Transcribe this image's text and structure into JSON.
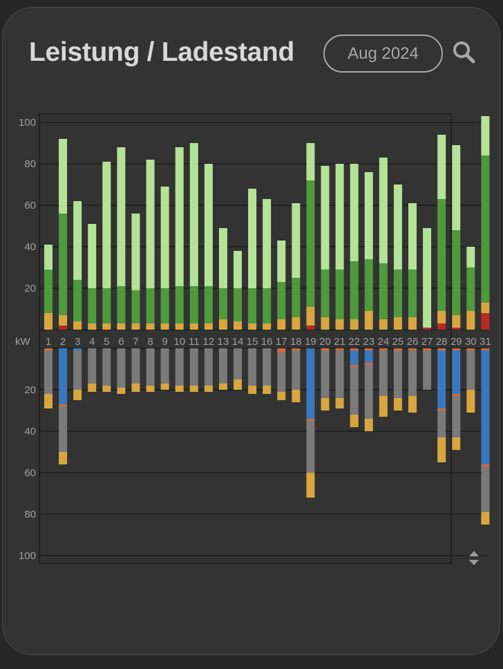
{
  "header": {
    "title": "Leistung / Ladestand",
    "period_label": "Aug 2024",
    "search_icon": "search-icon"
  },
  "chart_data": {
    "type": "bar",
    "unit_label": "kW",
    "categories": [
      "1",
      "2",
      "3",
      "4",
      "5",
      "6",
      "7",
      "8",
      "9",
      "10",
      "11",
      "12",
      "13",
      "14",
      "15",
      "16",
      "17",
      "18",
      "19",
      "20",
      "21",
      "22",
      "23",
      "24",
      "25",
      "26",
      "27",
      "28",
      "29",
      "30",
      "31"
    ],
    "upper": {
      "ylim": [
        0,
        103
      ],
      "ticks": [
        20,
        40,
        60,
        80,
        100
      ],
      "series": [
        {
          "key": "red",
          "color": "#b52a22",
          "values": [
            0,
            2,
            0,
            0,
            0,
            0,
            0,
            0,
            0,
            0,
            0,
            0,
            0,
            0,
            0,
            0,
            0,
            0,
            2,
            0,
            0,
            0,
            0,
            0,
            0,
            0,
            1,
            3,
            1,
            0,
            8
          ]
        },
        {
          "key": "yellow",
          "color": "#d8a640",
          "values": [
            8,
            5,
            4,
            3,
            3,
            3,
            3,
            3,
            3,
            3,
            3,
            3,
            5,
            4,
            3,
            3,
            5,
            6,
            9,
            6,
            5,
            5,
            9,
            5,
            6,
            6,
            0,
            6,
            6,
            9,
            5
          ]
        },
        {
          "key": "green",
          "color": "#4f9a3c",
          "values": [
            21,
            49,
            20,
            17,
            17,
            18,
            16,
            17,
            17,
            18,
            18,
            18,
            15,
            16,
            17,
            17,
            18,
            19,
            61,
            23,
            24,
            28,
            25,
            27,
            23,
            23,
            0,
            54,
            41,
            21,
            71
          ]
        },
        {
          "key": "lightgreen",
          "color": "#b4e296",
          "values": [
            12,
            36,
            38,
            31,
            61,
            67,
            37,
            62,
            49,
            67,
            69,
            59,
            29,
            18,
            48,
            43,
            20,
            36,
            18,
            50,
            51,
            47,
            42,
            51,
            41,
            32,
            48,
            31,
            41,
            10,
            19
          ]
        }
      ]
    },
    "lower": {
      "ylim": [
        0,
        103
      ],
      "ticks": [
        20,
        40,
        60,
        80,
        100
      ],
      "series": [
        {
          "key": "orange",
          "color": "#d2693a",
          "values": [
            1,
            0,
            0,
            0,
            0,
            0,
            0,
            0,
            0,
            0,
            0,
            0,
            0,
            0,
            0,
            0,
            2,
            1,
            0,
            1,
            1,
            1,
            1,
            1,
            1,
            1,
            1,
            1,
            1,
            1,
            1
          ]
        },
        {
          "key": "blue",
          "color": "#3a78bd",
          "values": [
            0,
            27,
            1,
            0,
            0,
            0,
            0,
            0,
            0,
            0,
            0,
            0,
            0,
            0,
            0,
            0,
            0,
            0,
            34,
            0,
            0,
            7,
            6,
            0,
            0,
            0,
            0,
            28,
            21,
            0,
            55
          ]
        },
        {
          "key": "orange2",
          "color": "#d2693a",
          "values": [
            0,
            1,
            0,
            0,
            0,
            0,
            0,
            0,
            0,
            0,
            0,
            0,
            0,
            0,
            0,
            0,
            0,
            0,
            1,
            0,
            0,
            1,
            1,
            0,
            0,
            0,
            0,
            1,
            1,
            0,
            1
          ]
        },
        {
          "key": "gray",
          "color": "#7a7a7a",
          "values": [
            21,
            22,
            19,
            17,
            18,
            19,
            17,
            18,
            17,
            18,
            18,
            18,
            17,
            15,
            18,
            18,
            19,
            19,
            25,
            23,
            23,
            23,
            26,
            22,
            23,
            22,
            19,
            13,
            20,
            19,
            22
          ]
        },
        {
          "key": "yellow",
          "color": "#d8a640",
          "values": [
            7,
            6,
            5,
            4,
            3,
            3,
            4,
            3,
            3,
            3,
            3,
            3,
            3,
            5,
            4,
            4,
            4,
            6,
            12,
            6,
            5,
            6,
            6,
            10,
            6,
            8,
            0,
            12,
            6,
            11,
            6
          ]
        }
      ]
    }
  }
}
